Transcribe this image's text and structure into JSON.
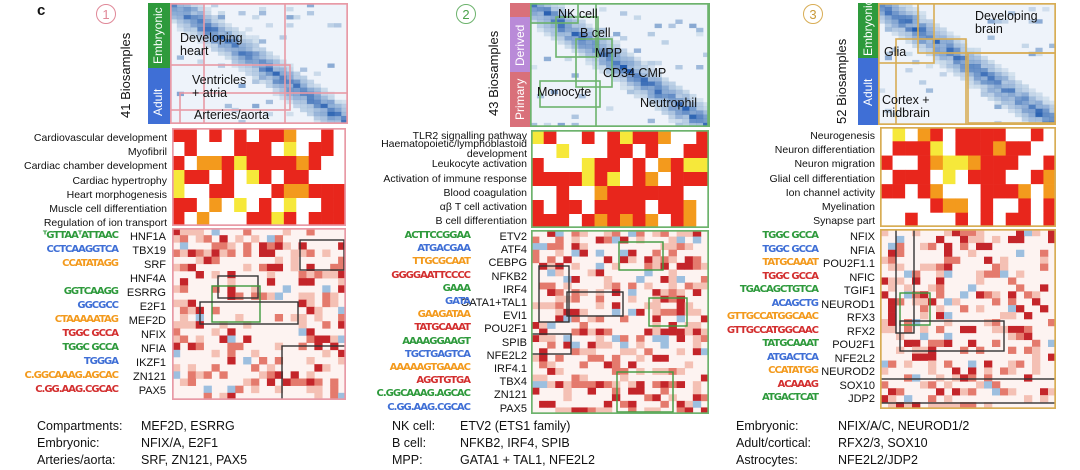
{
  "panel_letter": "c",
  "colors": {
    "embryonic": "#2e9a3c",
    "adult": "#3f6fd6",
    "derived": "#b98ad8",
    "primary": "#d9707a",
    "border1": "#e89aa6",
    "border2": "#6db36d",
    "border3": "#d8ad55",
    "red": "#e8261c",
    "orange": "#f39a1d",
    "yellow": "#f6e83a",
    "blue": "#1f5fa8"
  },
  "panels": [
    {
      "number": "1",
      "ylabel": "41 Biosamples",
      "compartments": [
        "Embryonic",
        "Adult"
      ],
      "annotations": [
        "Developing\nheart",
        "Ventricles\n+ atria",
        "Arteries/aorta"
      ],
      "go_terms": [
        "Cardiovascular development",
        "Myofibril",
        "Cardiac chamber development",
        "Cardiac hypertrophy",
        "Heart morphogenesis",
        "Muscle cell differentiation",
        "Regulation of ion transport"
      ],
      "motifs": [
        "HNF1A",
        "TBX19",
        "SRF",
        "HNF4A",
        "ESRRG",
        "E2F1",
        "MEF2D",
        "NFIX",
        "NFIA",
        "IKZF1",
        "ZN121",
        "PAX5"
      ],
      "logos": [
        "ᵀGTTAAᵀATTAAC",
        "CCTCAAGGTCA",
        "CCATATAGG",
        "",
        "GGTCAAGG",
        "GGCGCC",
        "CTAAAAATAG",
        "TGGC  GCCA",
        "TGGC  GCCA",
        "TGGGA",
        "C.GGCAAAG.AGCAC",
        "C.GG.AAG.CGCAC"
      ],
      "legend": [
        {
          "key": "Compartments:",
          "value": "MEF2D, ESRRG"
        },
        {
          "key": "Embryonic:",
          "value": "NFIX/A, E2F1"
        },
        {
          "key": "Arteries/aorta:",
          "value": "SRF, ZN121, PAX5"
        }
      ]
    },
    {
      "number": "2",
      "ylabel": "43 Biosamples",
      "compartments": [
        "Derived",
        "Primary"
      ],
      "annotations": [
        "NK cell",
        "B cell",
        "MPP",
        "CD34 CMP",
        "Monocyte",
        "Neutrophil"
      ],
      "go_terms": [
        "TLR2 signalling pathway",
        "Haematopoietic/lymphoblastoid\ndevelopment",
        "Leukocyte activation",
        "Activation of immune response",
        "Blood coagulation",
        "αβ T cell activation",
        "B cell differentiation"
      ],
      "motifs": [
        "ETV2",
        "ATF4",
        "CEBPG",
        "NFKB2",
        "IRF4",
        "GATA1+TAL1",
        "EVI1",
        "POU2F1",
        "SPIB",
        "NFE2L2",
        "IRF4.1",
        "TBX4",
        "ZN121",
        "PAX5"
      ],
      "logos": [
        "ACTTCCGGAA",
        "ATGACGAA",
        "TTGCGCAAT",
        "GGGGAATTCCCC",
        "GAAA",
        "GATA",
        "GAAGATAA",
        "TATGCAAAT",
        "AAAAGGAAGT",
        "TGCTGAGTCA",
        "AAAAAGTGAAAC",
        "AGGTGTGA",
        "C.GGCAAAG.AGCAC",
        "C.GG.AAG.CGCAC"
      ],
      "legend": [
        {
          "key": "NK cell:",
          "value": "ETV2 (ETS1 family)"
        },
        {
          "key": "B cell:",
          "value": "NFKB2, IRF4, SPIB"
        },
        {
          "key": "MPP:",
          "value": "GATA1 + TAL1, NFE2L2"
        }
      ]
    },
    {
      "number": "3",
      "ylabel": "52 Biosamples",
      "compartments": [
        "Embryonic",
        "Adult"
      ],
      "annotations": [
        "Developing\nbrain",
        "Glia",
        "Cortex +\nmidbrain"
      ],
      "go_terms": [
        "Neurogenesis",
        "Neuron differentiation",
        "Neuron migration",
        "Glial cell differentiation",
        "Ion channel activity",
        "Myelination",
        "Synapse part"
      ],
      "motifs": [
        "NFIX",
        "NFIA",
        "POU2F1.1",
        "NFIC",
        "TGIF1",
        "NEUROD1",
        "RFX3",
        "RFX2",
        "POU2F1",
        "NFE2L2",
        "NEUROD2",
        "SOX10",
        "JDP2"
      ],
      "logos": [
        "TGGC  GCCA",
        "TGGC  GCCA",
        "TATGCAAAT",
        "TGGC  GCCA",
        "TGACAGCTGTCA",
        "ACAGCTG",
        "GTTGCCATGGCAAC",
        "GTTGCCATGGCAAC",
        "TATGCAAAT",
        "ATGACTCA",
        "CCATATGG",
        "ACAAAG",
        "ATGACTCAT"
      ],
      "legend": [
        {
          "key": "Embryonic:",
          "value": "NFIX/A/C, NEUROD1/2"
        },
        {
          "key": "Adult/cortical:",
          "value": "RFX2/3, SOX10"
        },
        {
          "key": "Astrocytes:",
          "value": "NFE2L2/JDP2"
        }
      ]
    }
  ]
}
